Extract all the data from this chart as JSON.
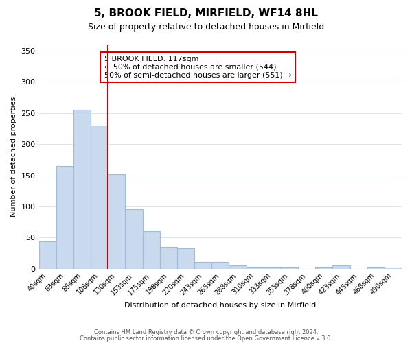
{
  "title": "5, BROOK FIELD, MIRFIELD, WF14 8HL",
  "subtitle": "Size of property relative to detached houses in Mirfield",
  "xlabel": "Distribution of detached houses by size in Mirfield",
  "ylabel": "Number of detached properties",
  "bar_labels": [
    "40sqm",
    "63sqm",
    "85sqm",
    "108sqm",
    "130sqm",
    "153sqm",
    "175sqm",
    "198sqm",
    "220sqm",
    "243sqm",
    "265sqm",
    "288sqm",
    "310sqm",
    "333sqm",
    "355sqm",
    "378sqm",
    "400sqm",
    "423sqm",
    "445sqm",
    "468sqm",
    "490sqm"
  ],
  "bar_values": [
    44,
    165,
    255,
    230,
    152,
    96,
    61,
    35,
    33,
    11,
    11,
    5,
    3,
    3,
    3,
    0,
    3,
    5,
    0,
    3,
    2
  ],
  "bar_color": "#c9d9ee",
  "bar_edge_color": "#a0bcd8",
  "vline_x": 3.5,
  "vline_color": "#cc0000",
  "ylim": [
    0,
    360
  ],
  "yticks": [
    0,
    50,
    100,
    150,
    200,
    250,
    300,
    350
  ],
  "annotation_title": "5 BROOK FIELD: 117sqm",
  "annotation_line1": "← 50% of detached houses are smaller (544)",
  "annotation_line2": "50% of semi-detached houses are larger (551) →",
  "annotation_box_color": "#ffffff",
  "annotation_box_edge_color": "#cc0000",
  "footer_line1": "Contains HM Land Registry data © Crown copyright and database right 2024.",
  "footer_line2": "Contains public sector information licensed under the Open Government Licence v 3.0.",
  "background_color": "#ffffff",
  "grid_color": "#dce6f1"
}
